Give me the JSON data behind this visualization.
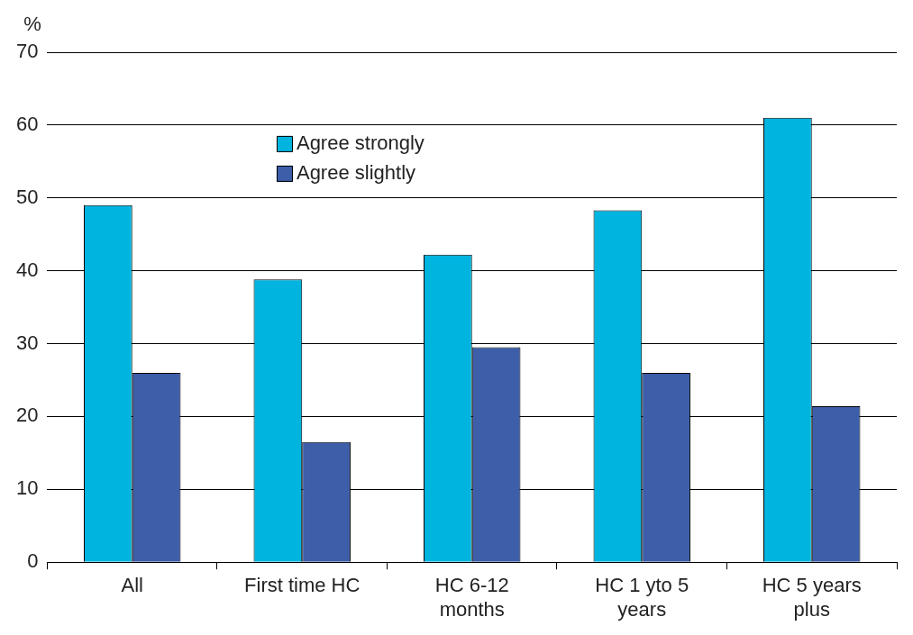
{
  "chart_data": {
    "type": "bar",
    "ylabel": "%",
    "categories": [
      "All",
      "First time HC",
      "HC 6-12 months",
      "HC 1 yto 5 years",
      "HC 5 years plus"
    ],
    "series": [
      {
        "name": "Agree strongly",
        "color": "#00b4e0",
        "values": [
          49,
          38.8,
          42.2,
          48.3,
          61
        ]
      },
      {
        "name": "Agree slightly",
        "color": "#3d5ea8",
        "values": [
          26,
          16.5,
          29.5,
          26,
          21.4
        ]
      }
    ],
    "ylim": [
      0,
      70
    ],
    "yticks": [
      0,
      10,
      20,
      30,
      40,
      50,
      60,
      70
    ],
    "grid": "y",
    "legend": "top left"
  }
}
